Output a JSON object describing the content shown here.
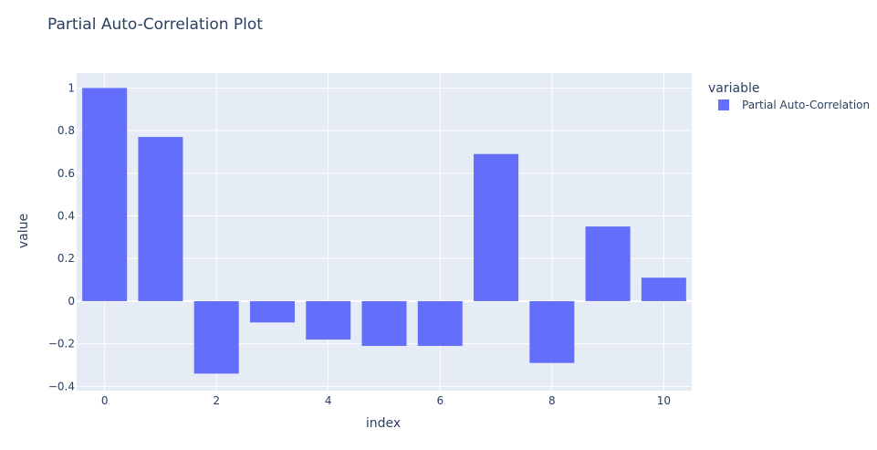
{
  "chart_data": {
    "type": "bar",
    "title": "Partial Auto-Correlation Plot",
    "xlabel": "index",
    "ylabel": "value",
    "categories": [
      0,
      1,
      2,
      3,
      4,
      5,
      6,
      7,
      8,
      9,
      10
    ],
    "series": [
      {
        "name": "Partial Auto-Correlation",
        "color": "#636efa",
        "values": [
          1.0,
          0.77,
          -0.34,
          -0.1,
          -0.18,
          -0.21,
          -0.21,
          0.69,
          -0.29,
          0.35,
          0.11
        ]
      }
    ],
    "legend_title": "variable",
    "x_ticks": [
      0,
      2,
      4,
      6,
      8,
      10
    ],
    "y_ticks": [
      -0.4,
      -0.2,
      0,
      0.2,
      0.4,
      0.6,
      0.8,
      1
    ],
    "y_tick_labels": [
      "−0.4",
      "−0.2",
      "0",
      "0.2",
      "0.4",
      "0.6",
      "0.8",
      "1"
    ],
    "xlim": [
      -0.5,
      10.5
    ],
    "ylim": [
      -0.42,
      1.07
    ],
    "grid": true,
    "legend_position": "top-right",
    "background": "#e5ecf6"
  }
}
